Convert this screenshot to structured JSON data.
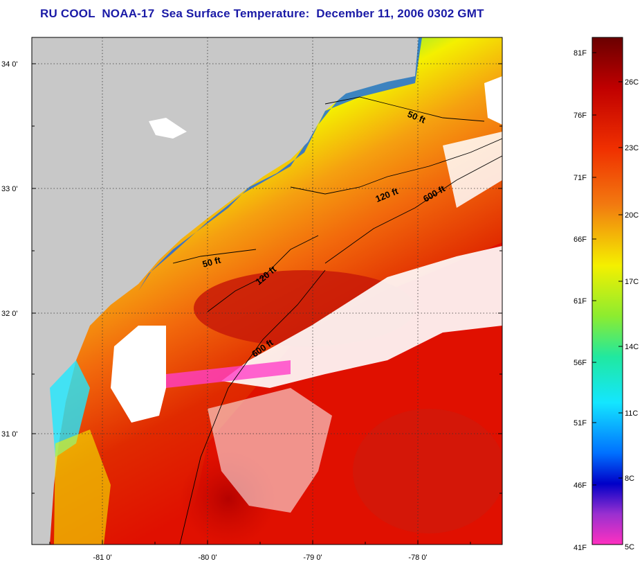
{
  "title": "RU COOL  NOAA-17  Sea Surface Temperature:  December 11, 2006 0302 GMT",
  "map": {
    "lat_labels": [
      "34 0'",
      "33 0'",
      "32 0'",
      "31 0'"
    ],
    "lon_labels": [
      "-81 0'",
      "-80 0'",
      "-79 0'",
      "-78 0'"
    ],
    "contours": [
      {
        "label": "50 ft"
      },
      {
        "label": "120 ft"
      },
      {
        "label": "600 ft"
      },
      {
        "label": "50 ft"
      },
      {
        "label": "120 ft"
      },
      {
        "label": "600 ft"
      }
    ]
  },
  "colorbar": {
    "fahrenheit_labels": [
      "81F",
      "76F",
      "71F",
      "66F",
      "61F",
      "56F",
      "51F",
      "46F",
      "41F"
    ],
    "celsius_labels": [
      "26C",
      "23C",
      "20C",
      "17C",
      "14C",
      "11C",
      "8C",
      "5C"
    ],
    "colors": {
      "hot": "#7a0000",
      "red": "#e01000",
      "orange": "#f26a0c",
      "yellow": "#f4f000",
      "green": "#3fe85c",
      "cyan": "#14e6ff",
      "blue": "#0050ff",
      "navy": "#0000c8",
      "purple": "#9a30d0",
      "magenta": "#ff30c0"
    }
  },
  "colors": {
    "land": "#c8c8c8",
    "cloud": "#ffffff",
    "title": "#1a1aa6"
  }
}
